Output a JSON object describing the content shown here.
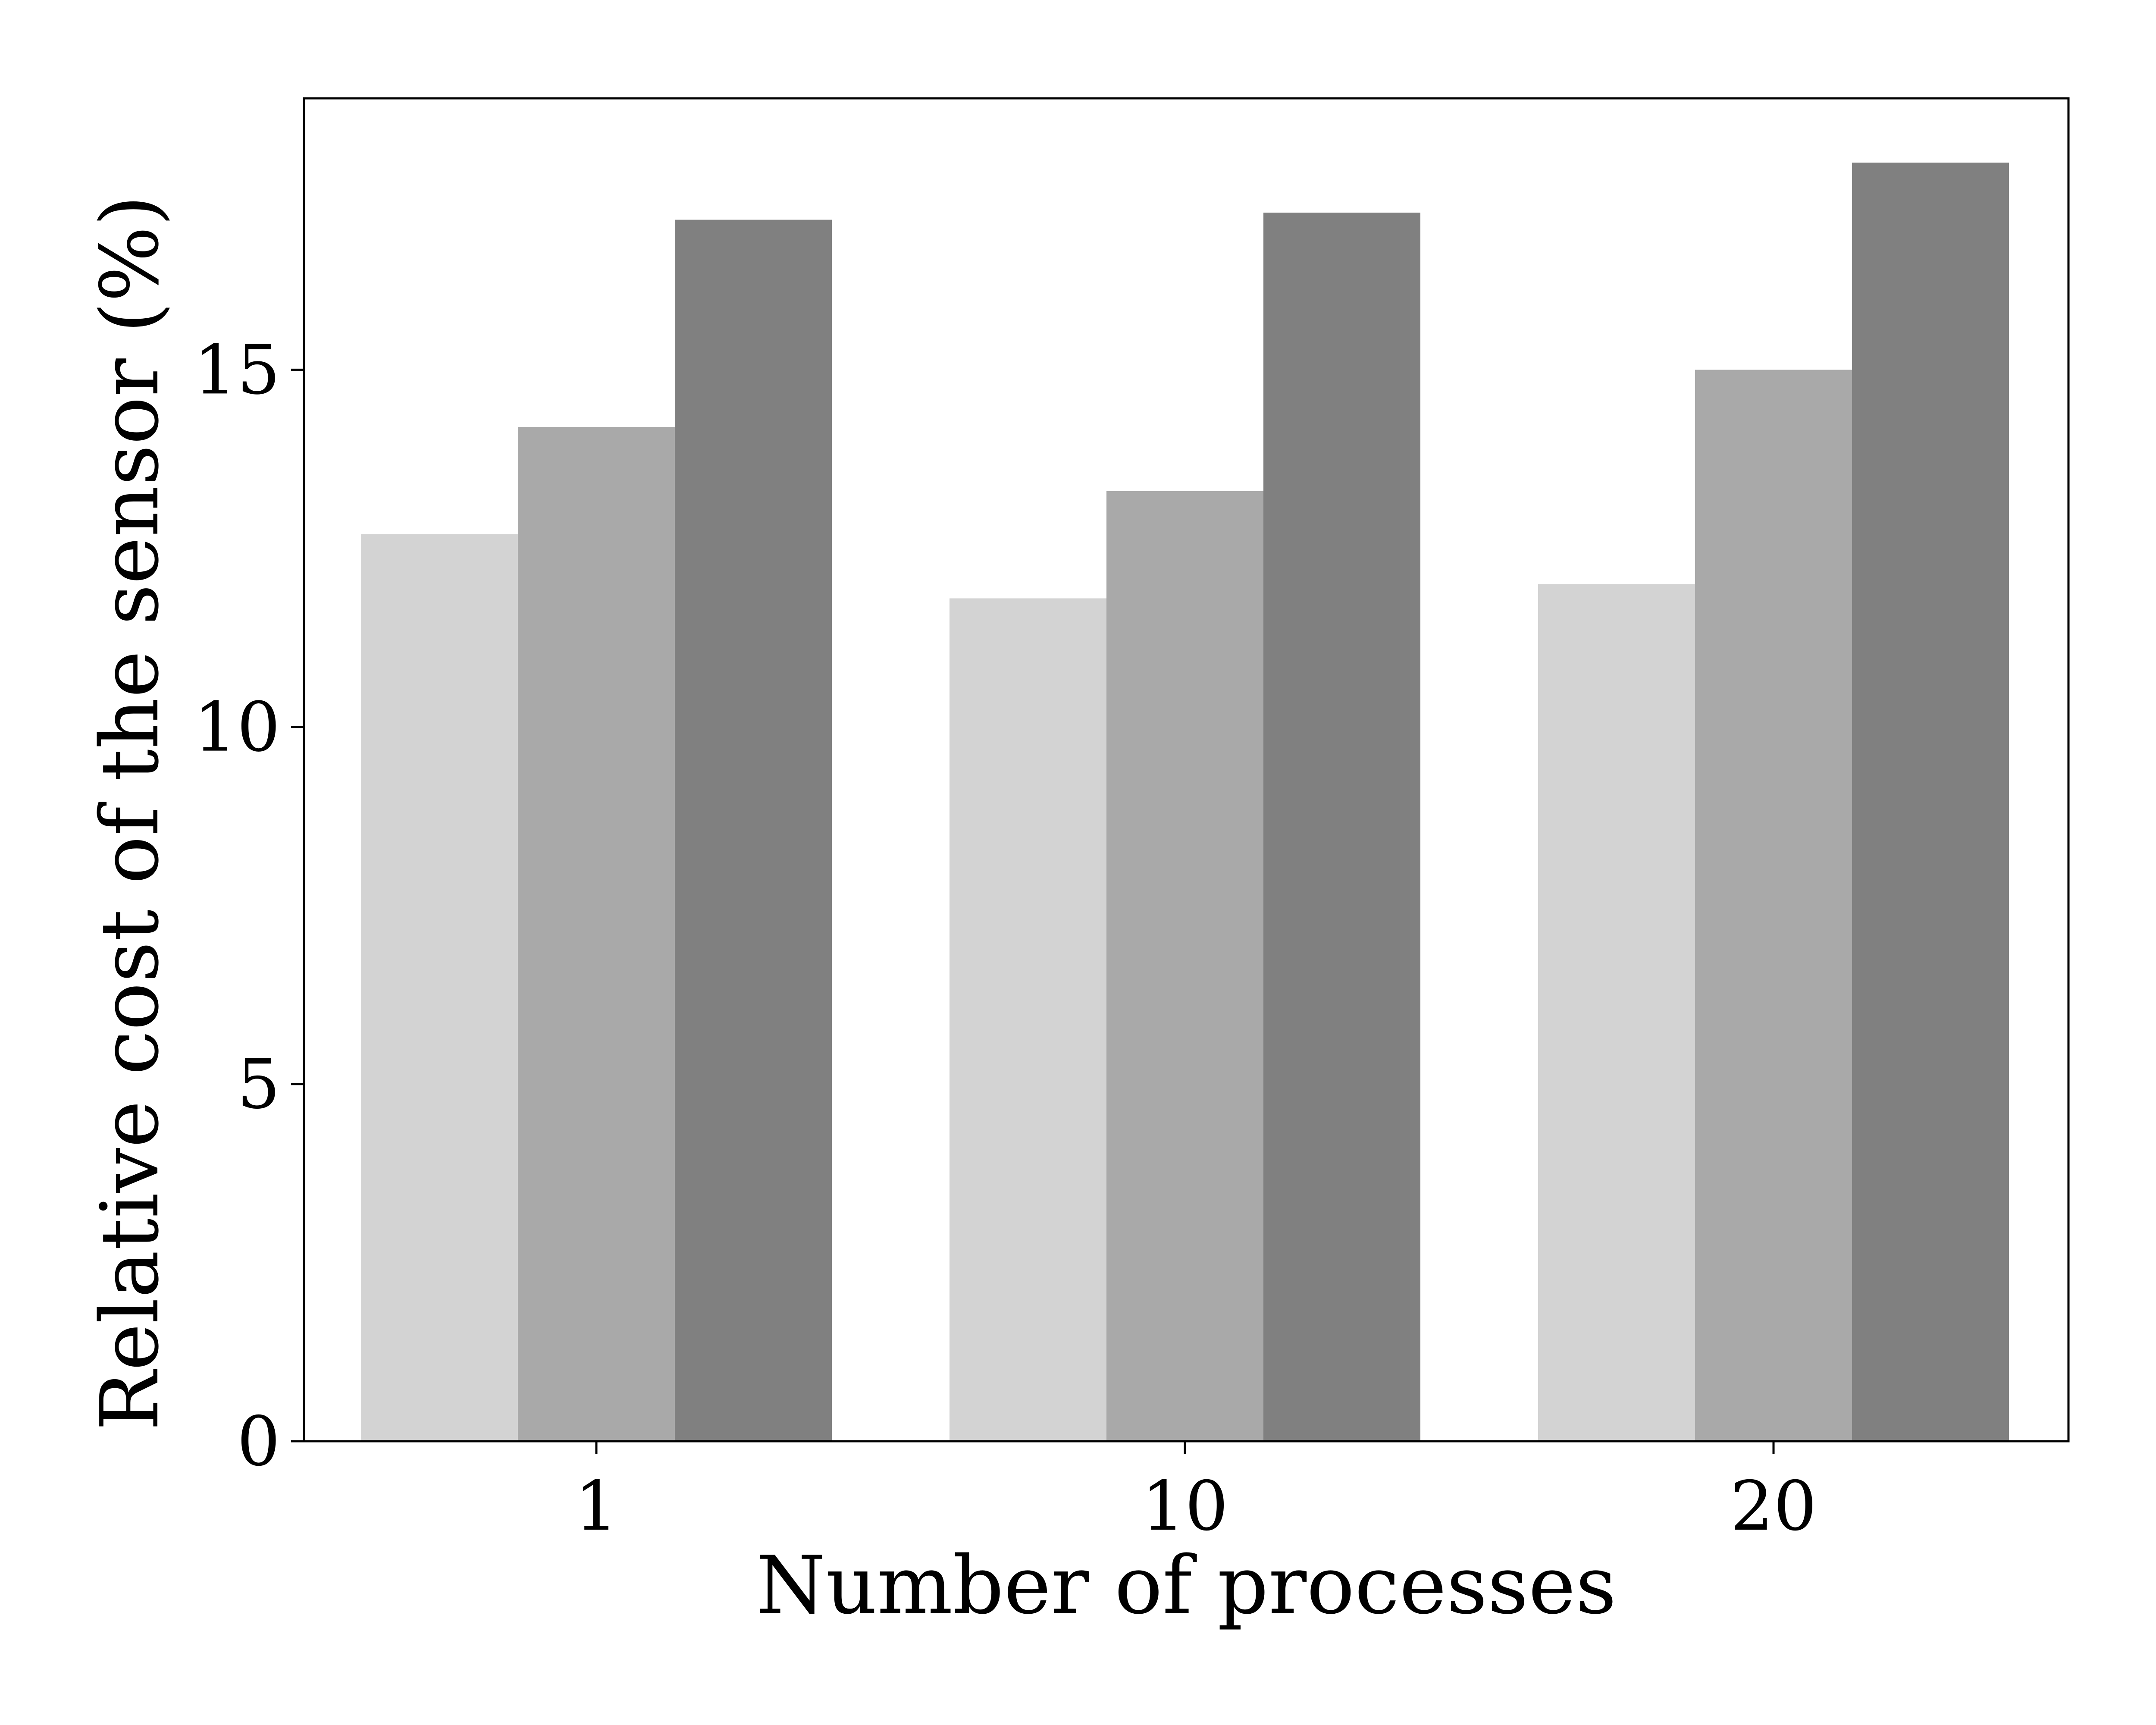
{
  "chart_data": {
    "type": "bar",
    "title": "",
    "xlabel": "Number of processes",
    "ylabel": "Relative cost of the sensor (%)",
    "categories": [
      "1",
      "10",
      "20"
    ],
    "series": [
      {
        "values": [
          12.7,
          11.8,
          12.0
        ],
        "color": "#d3d3d3"
      },
      {
        "values": [
          14.2,
          13.3,
          15.0
        ],
        "color": "#a9a9a9"
      },
      {
        "values": [
          17.1,
          17.2,
          17.9
        ],
        "color": "#808080"
      }
    ],
    "ylim": [
      0,
      18.8
    ],
    "yticks": [
      "0",
      "5",
      "10",
      "15"
    ],
    "ytick_values": [
      0,
      5,
      10,
      15
    ],
    "grid": false,
    "legend": "none"
  }
}
